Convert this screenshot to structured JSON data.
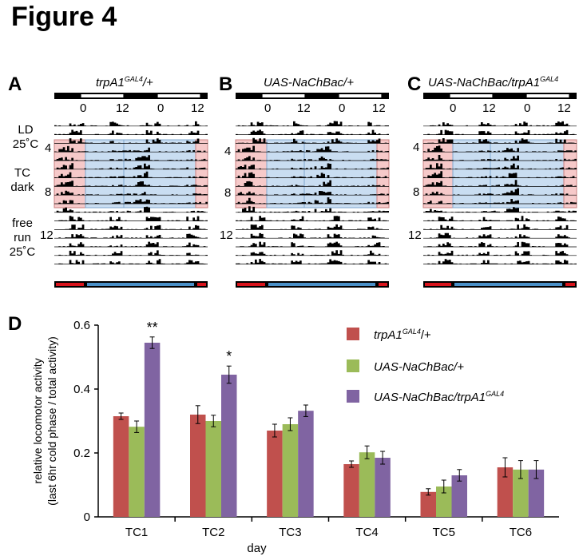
{
  "figure_title": "Figure 4",
  "panels": [
    {
      "letter": "A",
      "title": "trpA1",
      "title_sup": "GAL4",
      "title_suffix": "/+"
    },
    {
      "letter": "B",
      "title": "UAS-NaChBac/+",
      "title_sup": "",
      "title_suffix": ""
    },
    {
      "letter": "C",
      "title": "UAS-NaChBac/trpA1",
      "title_sup": "GAL4",
      "title_suffix": ""
    }
  ],
  "actogram": {
    "time_ticks": [
      "0",
      "12",
      "0",
      "12"
    ],
    "row_labels": {
      "ld_line1": "LD",
      "ld_line2": "25˚C",
      "tc_line1": "TC",
      "tc_line2": "dark",
      "fr_line1": "free",
      "fr_line2": "run",
      "fr_line3": "25˚C"
    },
    "day_marks": [
      "4",
      "8",
      "12"
    ],
    "colors": {
      "warm": "#d9141c",
      "cold": "#4a90c8",
      "warm_shade": "#f6c9c9",
      "cold_shade": "#c9ddf1",
      "activity": "#000000"
    }
  },
  "panel_d": {
    "letter": "D",
    "legend": [
      {
        "main": "trpA1",
        "sup": "GAL4",
        "suffix": "/+",
        "color": "#c0504d"
      },
      {
        "main": "UAS-NaChBac/+",
        "sup": "",
        "suffix": "",
        "color": "#9bbb59"
      },
      {
        "main": "UAS-NaChBac/trpA1",
        "sup": "GAL4",
        "suffix": "",
        "color": "#8064a2"
      }
    ],
    "significance": {
      "TC1": "**",
      "TC2": "*"
    }
  },
  "chart_data": {
    "type": "bar",
    "title": "",
    "xlabel": "day",
    "ylabel": "relative locomotor activity",
    "ylabel_line2": "(last 6hr cold phase / total activity)",
    "ylim": [
      0,
      0.6
    ],
    "yticks": [
      "0",
      "0.2",
      "0.4",
      "0.6"
    ],
    "categories": [
      "TC1",
      "TC2",
      "TC3",
      "TC4",
      "TC5",
      "TC6"
    ],
    "series": [
      {
        "name": "trpA1GAL4/+",
        "values": [
          0.315,
          0.32,
          0.27,
          0.165,
          0.078,
          0.155
        ],
        "errors": [
          0.01,
          0.028,
          0.02,
          0.01,
          0.01,
          0.03
        ]
      },
      {
        "name": "UAS-NaChBac/+",
        "values": [
          0.282,
          0.3,
          0.29,
          0.202,
          0.095,
          0.148
        ],
        "errors": [
          0.018,
          0.018,
          0.02,
          0.02,
          0.02,
          0.028
        ]
      },
      {
        "name": "UAS-NaChBac/trpA1GAL4",
        "values": [
          0.545,
          0.445,
          0.332,
          0.185,
          0.13,
          0.148
        ],
        "errors": [
          0.018,
          0.027,
          0.018,
          0.02,
          0.018,
          0.028
        ]
      }
    ]
  }
}
